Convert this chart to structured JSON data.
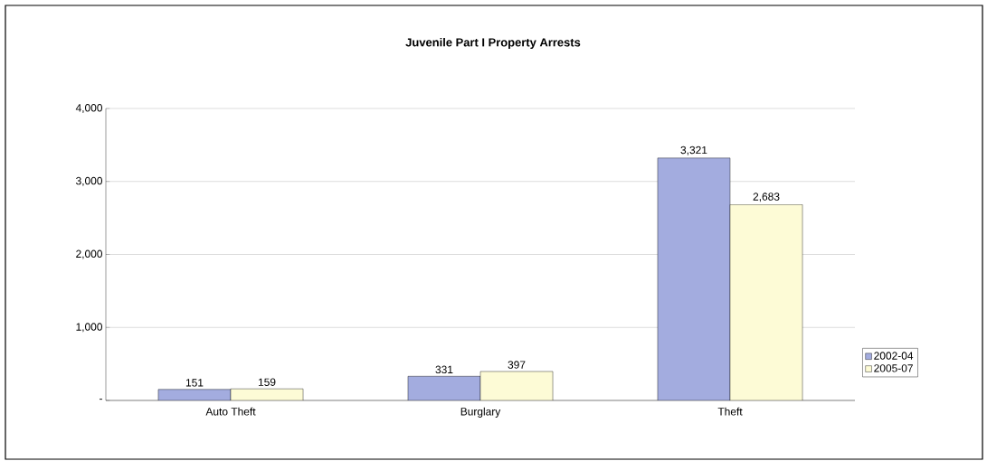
{
  "chart_data": {
    "type": "bar",
    "title": "Juvenile Part I Property Arrests",
    "categories": [
      "Auto Theft",
      "Burglary",
      "Theft"
    ],
    "series": [
      {
        "name": "2002-04",
        "color": "#a3acdf",
        "values": [
          151,
          331,
          3321
        ],
        "value_labels": [
          "151",
          "331",
          "3,321"
        ]
      },
      {
        "name": "2005-07",
        "color": "#fdfbd6",
        "values": [
          159,
          397,
          2683
        ],
        "value_labels": [
          "159",
          "397",
          "2,683"
        ]
      }
    ],
    "ylim": [
      0,
      4000
    ],
    "yticks": [
      {
        "value": 0,
        "label": "-"
      },
      {
        "value": 1000,
        "label": "1,000"
      },
      {
        "value": 2000,
        "label": "2,000"
      },
      {
        "value": 3000,
        "label": "3,000"
      },
      {
        "value": 4000,
        "label": "4,000"
      }
    ],
    "grid": "y",
    "legend": "right"
  }
}
